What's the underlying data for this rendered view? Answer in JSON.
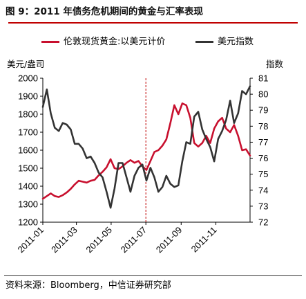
{
  "figure_title": "图 9：2011 年债务危机期间的黄金与汇率表现",
  "source": "资料来源：Bloomberg，中信证券研究部",
  "chart_data": {
    "type": "line",
    "y_left_label": "美元/盎司",
    "y_right_label": "指数",
    "y_left_range": [
      1200,
      2000
    ],
    "y_left_ticks": [
      "2000",
      "1900",
      "1800",
      "1700",
      "1600",
      "1500",
      "1400",
      "1300",
      "1200"
    ],
    "y_right_range": [
      72,
      81
    ],
    "y_right_ticks": [
      "81",
      "80",
      "79",
      "78",
      "77",
      "76",
      "75",
      "74",
      "73",
      "72"
    ],
    "x_range": [
      "2011-01-01",
      "2011-12-31"
    ],
    "x_ticks": [
      "2011-01",
      "2011-03",
      "2011-05",
      "2011-07",
      "2011-09",
      "2011-11"
    ],
    "reference_line": {
      "x": "2011-07-01",
      "style": "dashed",
      "color": "#c00000"
    },
    "grid": false,
    "legend_position": "top",
    "series": [
      {
        "name": "伦敦现货黄金:以美元计价",
        "axis": "left",
        "color": "#c8102e",
        "points": [
          [
            "2011-01-01",
            1330
          ],
          [
            "2011-01-08",
            1345
          ],
          [
            "2011-01-15",
            1360
          ],
          [
            "2011-01-22",
            1345
          ],
          [
            "2011-01-29",
            1340
          ],
          [
            "2011-02-05",
            1350
          ],
          [
            "2011-02-12",
            1365
          ],
          [
            "2011-02-19",
            1385
          ],
          [
            "2011-02-26",
            1410
          ],
          [
            "2011-03-05",
            1430
          ],
          [
            "2011-03-12",
            1425
          ],
          [
            "2011-03-19",
            1420
          ],
          [
            "2011-03-26",
            1430
          ],
          [
            "2011-04-02",
            1435
          ],
          [
            "2011-04-09",
            1460
          ],
          [
            "2011-04-16",
            1480
          ],
          [
            "2011-04-23",
            1505
          ],
          [
            "2011-04-30",
            1550
          ],
          [
            "2011-05-07",
            1500
          ],
          [
            "2011-05-14",
            1495
          ],
          [
            "2011-05-21",
            1510
          ],
          [
            "2011-05-28",
            1530
          ],
          [
            "2011-06-04",
            1545
          ],
          [
            "2011-06-11",
            1530
          ],
          [
            "2011-06-18",
            1540
          ],
          [
            "2011-06-25",
            1510
          ],
          [
            "2011-07-02",
            1490
          ],
          [
            "2011-07-09",
            1540
          ],
          [
            "2011-07-16",
            1590
          ],
          [
            "2011-07-23",
            1600
          ],
          [
            "2011-07-30",
            1625
          ],
          [
            "2011-08-06",
            1660
          ],
          [
            "2011-08-13",
            1750
          ],
          [
            "2011-08-20",
            1850
          ],
          [
            "2011-08-27",
            1800
          ],
          [
            "2011-09-03",
            1860
          ],
          [
            "2011-09-10",
            1850
          ],
          [
            "2011-09-17",
            1780
          ],
          [
            "2011-09-24",
            1640
          ],
          [
            "2011-10-01",
            1620
          ],
          [
            "2011-10-08",
            1640
          ],
          [
            "2011-10-15",
            1680
          ],
          [
            "2011-10-22",
            1640
          ],
          [
            "2011-10-29",
            1720
          ],
          [
            "2011-11-05",
            1760
          ],
          [
            "2011-11-12",
            1780
          ],
          [
            "2011-11-19",
            1720
          ],
          [
            "2011-11-26",
            1700
          ],
          [
            "2011-12-03",
            1740
          ],
          [
            "2011-12-10",
            1680
          ],
          [
            "2011-12-17",
            1600
          ],
          [
            "2011-12-24",
            1605
          ],
          [
            "2011-12-31",
            1570
          ]
        ]
      },
      {
        "name": "美元指数",
        "axis": "right",
        "color": "#333333",
        "points": [
          [
            "2011-01-01",
            79.2
          ],
          [
            "2011-01-08",
            80.3
          ],
          [
            "2011-01-15",
            78.8
          ],
          [
            "2011-01-22",
            77.9
          ],
          [
            "2011-01-29",
            77.7
          ],
          [
            "2011-02-05",
            78.2
          ],
          [
            "2011-02-12",
            78.1
          ],
          [
            "2011-02-19",
            77.8
          ],
          [
            "2011-02-26",
            76.9
          ],
          [
            "2011-03-05",
            76.9
          ],
          [
            "2011-03-12",
            76.6
          ],
          [
            "2011-03-19",
            76.0
          ],
          [
            "2011-03-26",
            76.1
          ],
          [
            "2011-04-02",
            75.7
          ],
          [
            "2011-04-09",
            75.1
          ],
          [
            "2011-04-16",
            74.8
          ],
          [
            "2011-04-23",
            73.9
          ],
          [
            "2011-04-30",
            72.9
          ],
          [
            "2011-05-07",
            74.1
          ],
          [
            "2011-05-14",
            75.7
          ],
          [
            "2011-05-21",
            75.7
          ],
          [
            "2011-05-28",
            74.8
          ],
          [
            "2011-06-04",
            73.9
          ],
          [
            "2011-06-11",
            74.9
          ],
          [
            "2011-06-18",
            75.4
          ],
          [
            "2011-06-25",
            75.6
          ],
          [
            "2011-07-02",
            74.6
          ],
          [
            "2011-07-09",
            75.4
          ],
          [
            "2011-07-16",
            74.8
          ],
          [
            "2011-07-23",
            73.9
          ],
          [
            "2011-07-30",
            74.2
          ],
          [
            "2011-08-06",
            74.9
          ],
          [
            "2011-08-13",
            74.4
          ],
          [
            "2011-08-20",
            74.2
          ],
          [
            "2011-08-27",
            74.3
          ],
          [
            "2011-09-03",
            75.8
          ],
          [
            "2011-09-10",
            77.0
          ],
          [
            "2011-09-17",
            76.9
          ],
          [
            "2011-09-24",
            78.6
          ],
          [
            "2011-10-01",
            78.9
          ],
          [
            "2011-10-08",
            77.8
          ],
          [
            "2011-10-15",
            77.2
          ],
          [
            "2011-10-22",
            76.7
          ],
          [
            "2011-10-29",
            75.8
          ],
          [
            "2011-11-05",
            77.2
          ],
          [
            "2011-11-12",
            77.7
          ],
          [
            "2011-11-19",
            78.4
          ],
          [
            "2011-11-26",
            79.6
          ],
          [
            "2011-12-03",
            78.2
          ],
          [
            "2011-12-10",
            78.8
          ],
          [
            "2011-12-17",
            80.2
          ],
          [
            "2011-12-24",
            80.0
          ],
          [
            "2011-12-31",
            80.5
          ]
        ]
      }
    ]
  }
}
